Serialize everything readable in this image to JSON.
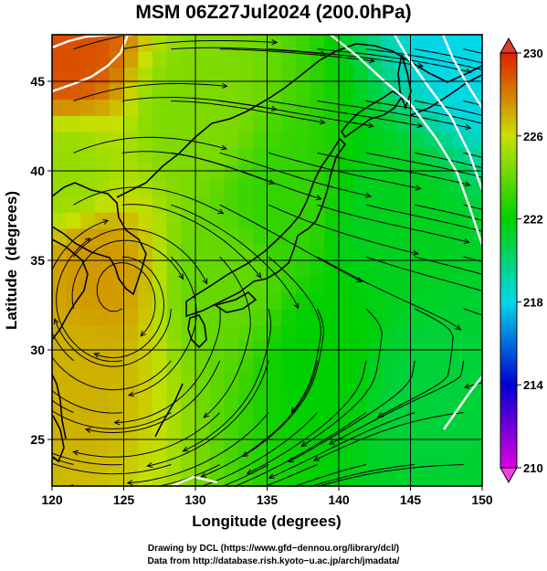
{
  "chart_data": {
    "type": "heatmap",
    "title": "MSM 06Z27Jul2024 (200.0hPa)",
    "xlabel": "Longitude (degrees)",
    "ylabel": "Latitude  (degrees)",
    "xlim": [
      120,
      150
    ],
    "ylim": [
      22.4,
      47.6
    ],
    "x_ticks": [
      120,
      125,
      130,
      135,
      140,
      145,
      150
    ],
    "y_ticks": [
      25,
      30,
      35,
      40,
      45
    ],
    "x_tick_labels": [
      "120",
      "125",
      "130",
      "135",
      "140",
      "145",
      "150"
    ],
    "y_tick_labels": [
      "25",
      "30",
      "35",
      "40",
      "45"
    ],
    "grid": true,
    "colorbar": {
      "min": 210,
      "max": 230,
      "ticks": [
        210,
        214,
        218,
        222,
        226,
        230
      ],
      "tick_labels": [
        "210",
        "214",
        "218",
        "222",
        "226",
        "230"
      ],
      "extend": "both",
      "placement": "right"
    },
    "field_samples": [
      {
        "lon": 121,
        "lat": 46.5,
        "value": 229
      },
      {
        "lon": 123,
        "lat": 34.5,
        "value": 227.5
      },
      {
        "lon": 121,
        "lat": 29,
        "value": 227
      },
      {
        "lon": 121,
        "lat": 40,
        "value": 225
      },
      {
        "lon": 130,
        "lat": 43,
        "value": 224.5
      },
      {
        "lon": 132,
        "lat": 34,
        "value": 224
      },
      {
        "lon": 136,
        "lat": 38,
        "value": 223
      },
      {
        "lon": 139,
        "lat": 30,
        "value": 222
      },
      {
        "lon": 143,
        "lat": 37,
        "value": 221.5
      },
      {
        "lon": 146,
        "lat": 28,
        "value": 221
      },
      {
        "lon": 149.5,
        "lat": 47,
        "value": 218
      }
    ]
  },
  "credits": {
    "line1": "Drawing by DCL (https://www.gfd−dennou.org/library/dcl/)",
    "line2": "Data from http://database.rish.kyoto−u.ac.jp/arch/jmadata/"
  },
  "colors": {
    "frame": "#000000",
    "contour": "#ffffff",
    "streamline": "#000000",
    "coast": "#000000"
  }
}
